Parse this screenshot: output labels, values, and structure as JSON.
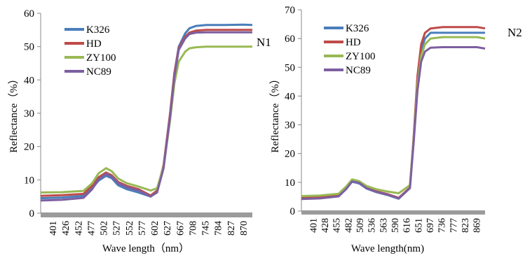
{
  "chart_data": [
    {
      "type": "line",
      "panel_label": "N1",
      "xlabel": "Wave length（nm）",
      "ylabel": "Reflectance（%）",
      "ylim": [
        0,
        60
      ],
      "y_ticks": [
        0,
        10,
        20,
        30,
        40,
        50,
        60
      ],
      "x_tick_labels": [
        "401",
        "426",
        "452",
        "477",
        "502",
        "527",
        "552",
        "577",
        "602",
        "627",
        "667",
        "708",
        "745",
        "784",
        "827",
        "870"
      ],
      "xlim": [
        401,
        890
      ],
      "legend_position": "top-left",
      "series": [
        {
          "name": "K326",
          "color": "#4a7ebb",
          "x": [
            401,
            450,
            500,
            520,
            535,
            552,
            565,
            580,
            600,
            627,
            655,
            670,
            685,
            700,
            710,
            720,
            735,
            745,
            760,
            784,
            827,
            870,
            890
          ],
          "y": [
            4.5,
            4.7,
            5.2,
            7.5,
            9.8,
            11.2,
            10.5,
            8.4,
            7.2,
            6.2,
            5.0,
            6.5,
            14,
            30,
            42,
            50,
            54,
            55.5,
            56.2,
            56.5,
            56.5,
            56.6,
            56.5
          ]
        },
        {
          "name": "HD",
          "color": "#be4b48",
          "x": [
            401,
            450,
            500,
            520,
            535,
            552,
            565,
            580,
            600,
            627,
            655,
            670,
            685,
            700,
            710,
            720,
            735,
            745,
            760,
            784,
            827,
            870,
            890
          ],
          "y": [
            5.2,
            5.4,
            5.8,
            8.3,
            10.8,
            12.2,
            11.4,
            9.4,
            8.2,
            7.2,
            5.3,
            6.8,
            14.5,
            30,
            42,
            49.5,
            53,
            54.2,
            54.8,
            55,
            55,
            55,
            55
          ]
        },
        {
          "name": "ZY100",
          "color": "#98b954",
          "x": [
            401,
            450,
            500,
            520,
            535,
            552,
            565,
            580,
            600,
            627,
            655,
            670,
            685,
            700,
            710,
            720,
            735,
            745,
            760,
            784,
            827,
            870,
            890
          ],
          "y": [
            6.2,
            6.3,
            6.7,
            9.0,
            12.0,
            13.5,
            12.6,
            10.4,
            9.0,
            8.0,
            6.8,
            7.5,
            14,
            28,
            39,
            45.5,
            48.5,
            49.5,
            49.8,
            50,
            50,
            50,
            50
          ]
        },
        {
          "name": "NC89",
          "color": "#7d5fa0",
          "x": [
            401,
            450,
            500,
            520,
            535,
            552,
            565,
            580,
            600,
            627,
            655,
            670,
            685,
            700,
            710,
            720,
            735,
            745,
            760,
            784,
            827,
            870,
            890
          ],
          "y": [
            3.8,
            4.0,
            4.6,
            7.2,
            10.2,
            11.8,
            11.0,
            9.0,
            7.8,
            6.8,
            5.0,
            6.2,
            13.5,
            29,
            41,
            49,
            52.5,
            53.8,
            54.2,
            54.3,
            54.3,
            54.3,
            54.3
          ]
        }
      ]
    },
    {
      "type": "line",
      "panel_label": "N2",
      "xlabel": "Wave length(nm)",
      "ylabel": "Reflectance（%）",
      "ylim": [
        0,
        70
      ],
      "y_ticks": [
        0,
        10,
        20,
        30,
        40,
        50,
        60,
        70
      ],
      "x_tick_labels": [
        "401",
        "428",
        "455",
        "482",
        "509",
        "536",
        "563",
        "590",
        "616",
        "651",
        "697",
        "736",
        "777",
        "823",
        "869"
      ],
      "xlim": [
        401,
        890
      ],
      "legend_position": "top-left",
      "series": [
        {
          "name": "K326",
          "color": "#4a7ebb",
          "x": [
            401,
            450,
            500,
            520,
            536,
            555,
            575,
            600,
            630,
            660,
            690,
            700,
            710,
            720,
            730,
            745,
            777,
            823,
            869,
            890
          ],
          "y": [
            4.5,
            4.7,
            5.4,
            7.8,
            10.2,
            9.6,
            7.8,
            6.6,
            5.6,
            4.3,
            8,
            25,
            45,
            56,
            60,
            62,
            62,
            62,
            62,
            62
          ]
        },
        {
          "name": "HD",
          "color": "#be4b48",
          "x": [
            401,
            450,
            500,
            520,
            536,
            555,
            575,
            600,
            630,
            660,
            690,
            700,
            710,
            720,
            730,
            745,
            777,
            823,
            869,
            890
          ],
          "y": [
            4.8,
            5.0,
            5.6,
            8.0,
            10.5,
            9.9,
            8.1,
            6.9,
            5.9,
            4.6,
            8.2,
            26,
            47,
            58,
            62,
            63.5,
            64,
            64,
            64,
            63.5
          ]
        },
        {
          "name": "ZY100",
          "color": "#98b954",
          "x": [
            401,
            450,
            500,
            520,
            536,
            555,
            575,
            600,
            630,
            660,
            690,
            700,
            710,
            720,
            730,
            745,
            777,
            823,
            869,
            890
          ],
          "y": [
            5.2,
            5.4,
            6.0,
            8.5,
            11.0,
            10.4,
            8.7,
            7.6,
            6.8,
            6.2,
            9,
            25,
            44,
            54,
            58,
            60,
            60.5,
            60.5,
            60.5,
            60
          ]
        },
        {
          "name": "NC89",
          "color": "#7d5fa0",
          "x": [
            401,
            450,
            500,
            520,
            536,
            555,
            575,
            600,
            630,
            660,
            690,
            700,
            710,
            720,
            730,
            745,
            777,
            823,
            869,
            890
          ],
          "y": [
            4.2,
            4.4,
            5.1,
            7.6,
            10.3,
            9.8,
            7.9,
            6.7,
            5.7,
            4.4,
            8,
            24,
            42,
            52,
            55.5,
            56.8,
            57,
            57,
            57,
            56.5
          ]
        }
      ]
    }
  ]
}
